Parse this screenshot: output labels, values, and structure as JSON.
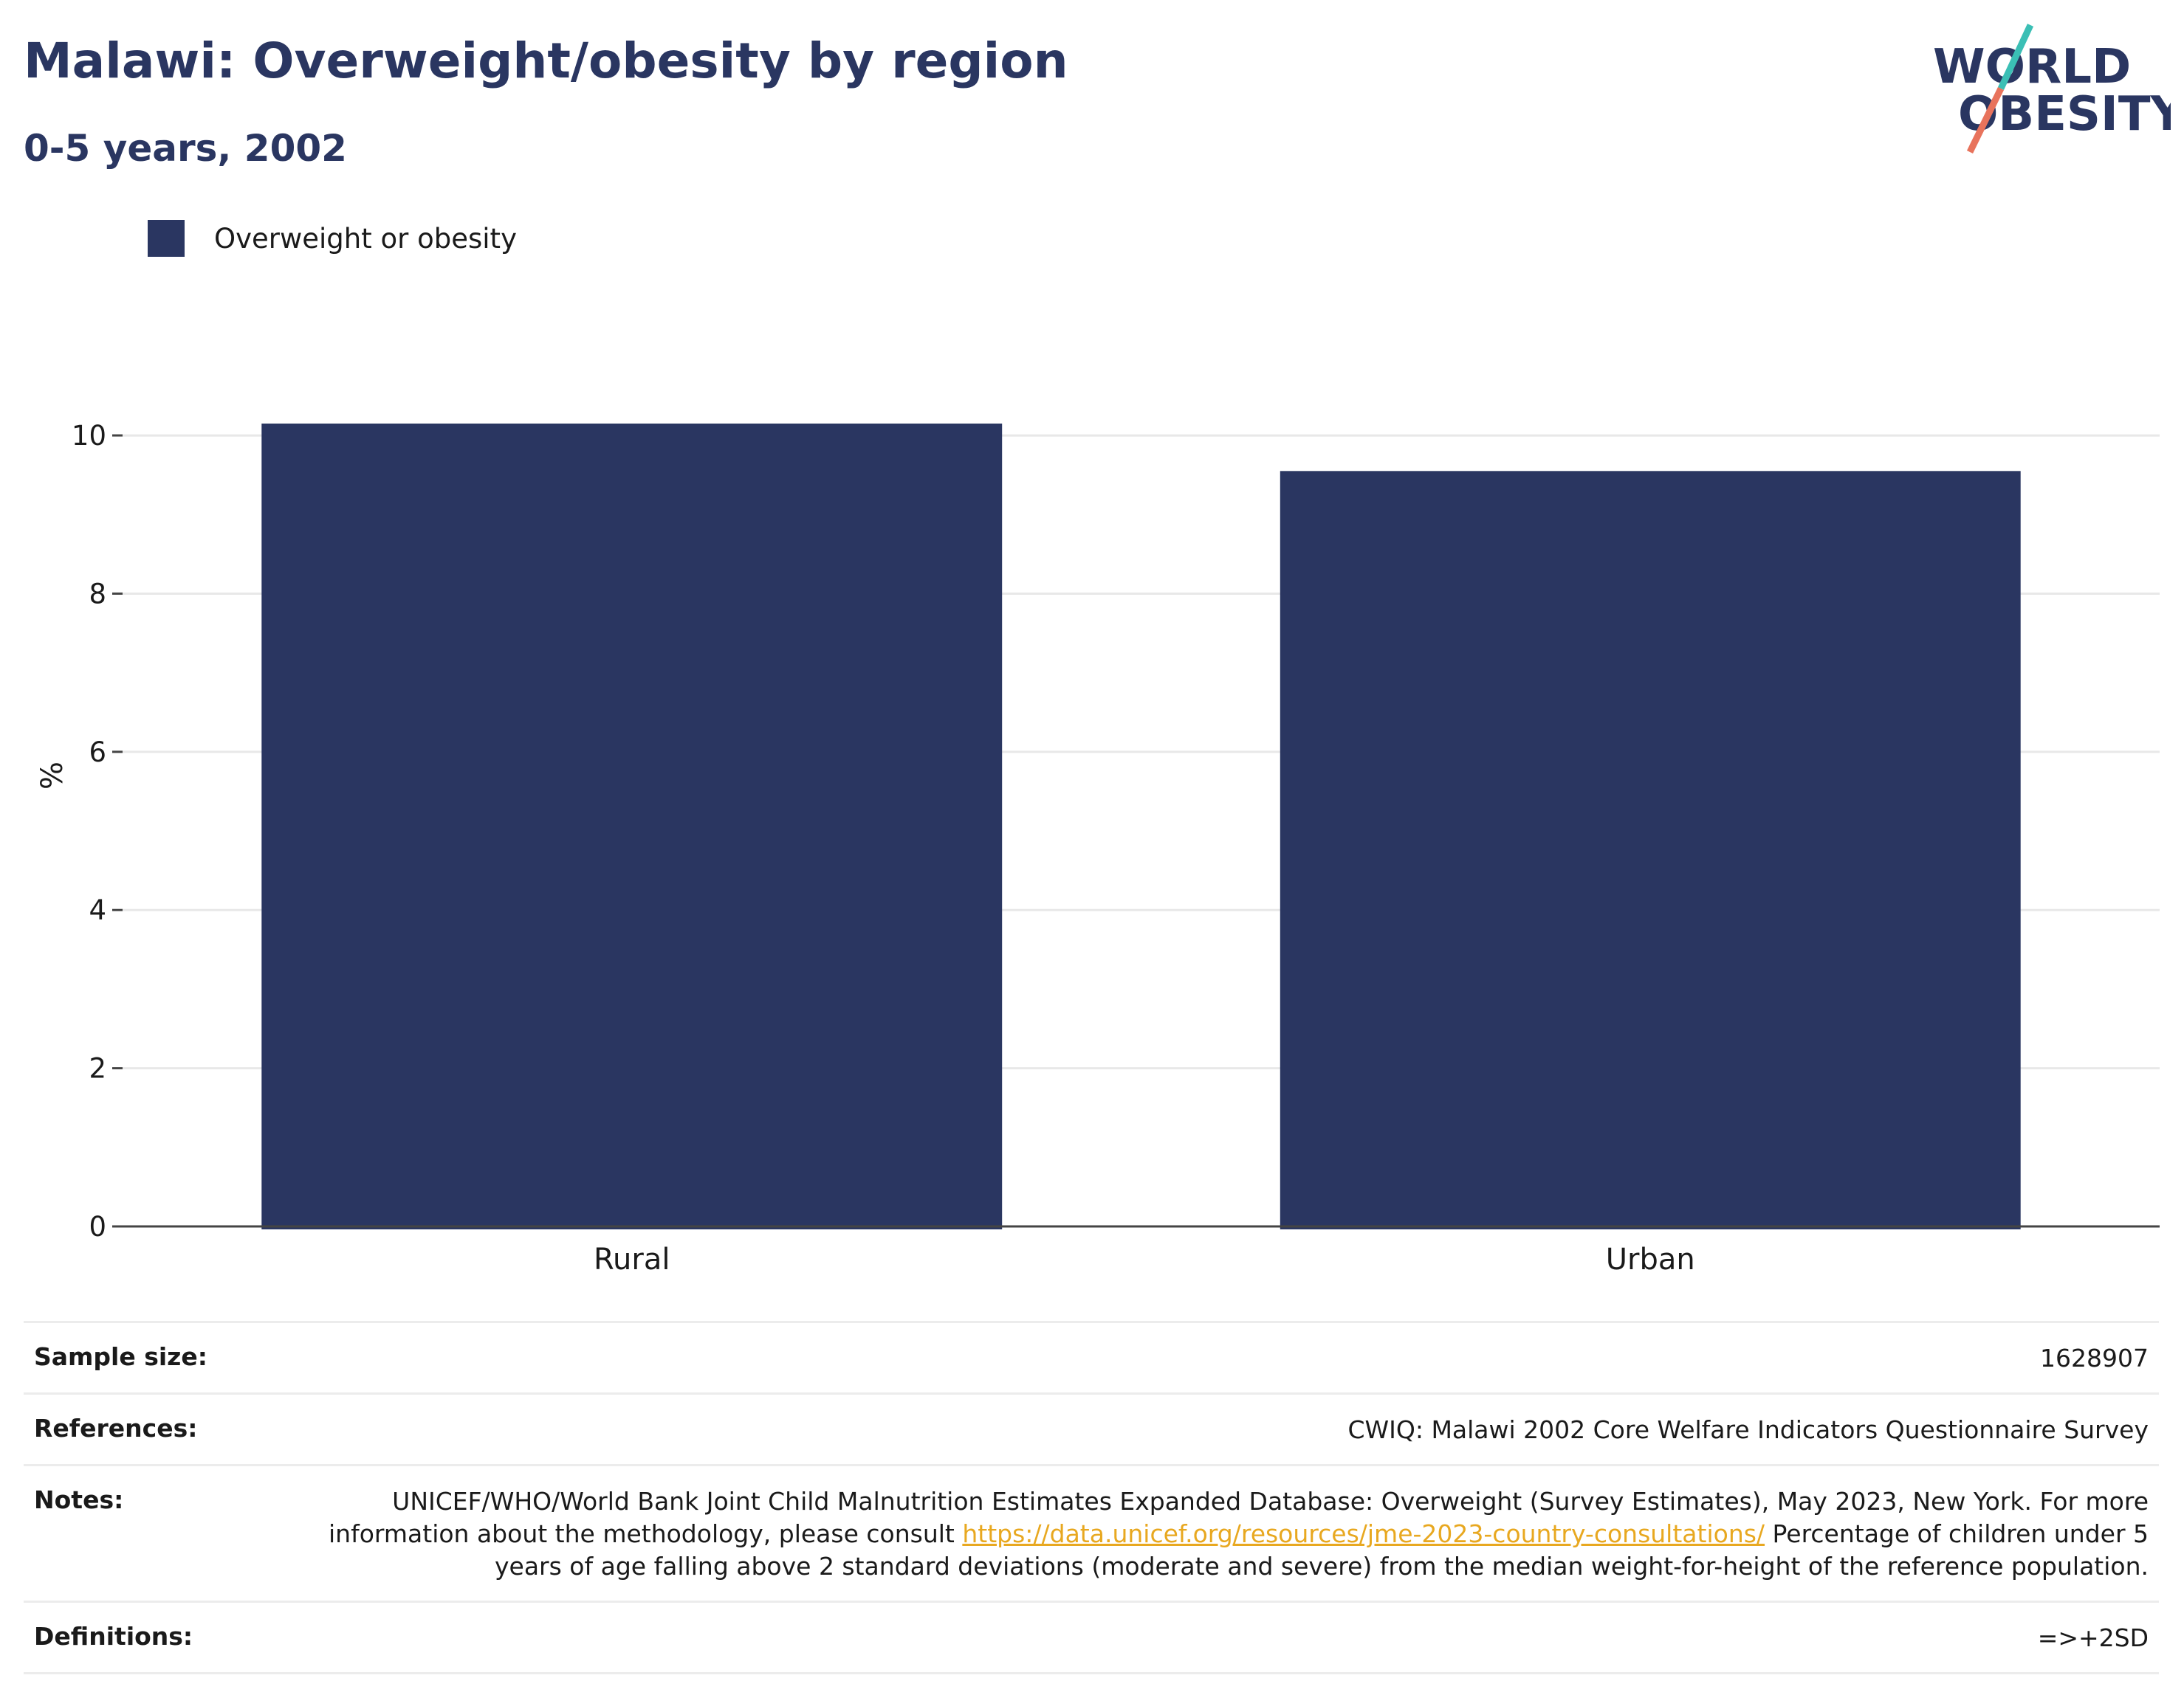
{
  "header": {
    "title": "Malawi: Overweight/obesity by region",
    "subtitle": "0-5 years, 2002"
  },
  "logo": {
    "line1": "WORLD",
    "line2": "OBESITY"
  },
  "chart_data": {
    "type": "bar",
    "categories": [
      "Rural",
      "Urban"
    ],
    "series": [
      {
        "name": "Overweight or obesity",
        "values": [
          10.15,
          9.55
        ],
        "color": "#2a3661"
      }
    ],
    "xlabel": "",
    "ylabel": "%",
    "ylim": [
      0,
      11.4
    ],
    "yticks": [
      0,
      2,
      4,
      6,
      8,
      10
    ],
    "grid": true,
    "legend_position": "top-left"
  },
  "info": {
    "sample_size": {
      "label": "Sample size:",
      "value": "1628907"
    },
    "references": {
      "label": "References:",
      "value": "CWIQ: Malawi 2002 Core Welfare Indicators Questionnaire Survey"
    },
    "notes": {
      "label": "Notes:",
      "text_before": "UNICEF/WHO/World Bank Joint Child Malnutrition Estimates Expanded Database: Overweight (Survey Estimates), May 2023, New York. For more information about the methodology, please consult ",
      "link": "https://data.unicef.org/resources/jme-2023-country-consultations/",
      "text_after": " Percentage of children under 5 years of age falling above 2 standard deviations (moderate and severe) from the median weight-for-height of the reference population."
    },
    "definitions": {
      "label": "Definitions:",
      "value": "=>+2SD"
    }
  }
}
